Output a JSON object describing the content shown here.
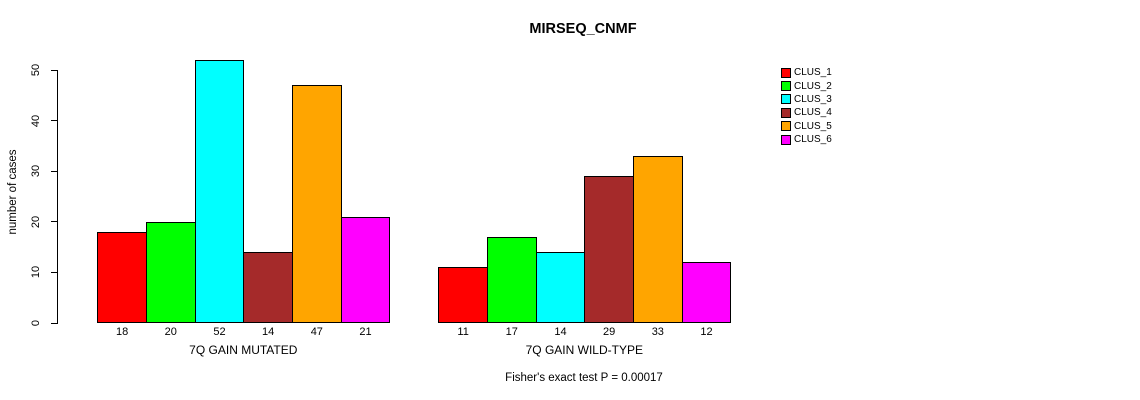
{
  "chart_data": {
    "type": "bar",
    "title": "MIRSEQ_CNMF",
    "ylabel": "number of cases",
    "annotation": "Fisher's exact test P = 0.00017",
    "categories": [
      "7Q GAIN MUTATED",
      "7Q GAIN WILD-TYPE"
    ],
    "series": [
      {
        "name": "CLUS_1",
        "color": "#FF0000",
        "values": [
          18,
          11
        ]
      },
      {
        "name": "CLUS_2",
        "color": "#00FF00",
        "values": [
          20,
          17
        ]
      },
      {
        "name": "CLUS_3",
        "color": "#00FFFF",
        "values": [
          52,
          14
        ]
      },
      {
        "name": "CLUS_4",
        "color": "#A52A2A",
        "values": [
          14,
          29
        ]
      },
      {
        "name": "CLUS_5",
        "color": "#FFA500",
        "values": [
          47,
          33
        ]
      },
      {
        "name": "CLUS_6",
        "color": "#FF00FF",
        "values": [
          21,
          12
        ]
      }
    ],
    "yticks": [
      0,
      10,
      20,
      30,
      40,
      50
    ],
    "ylim": [
      0,
      52
    ],
    "bar_value_labels_shown": true,
    "grid": "off",
    "legend_position": "right"
  }
}
